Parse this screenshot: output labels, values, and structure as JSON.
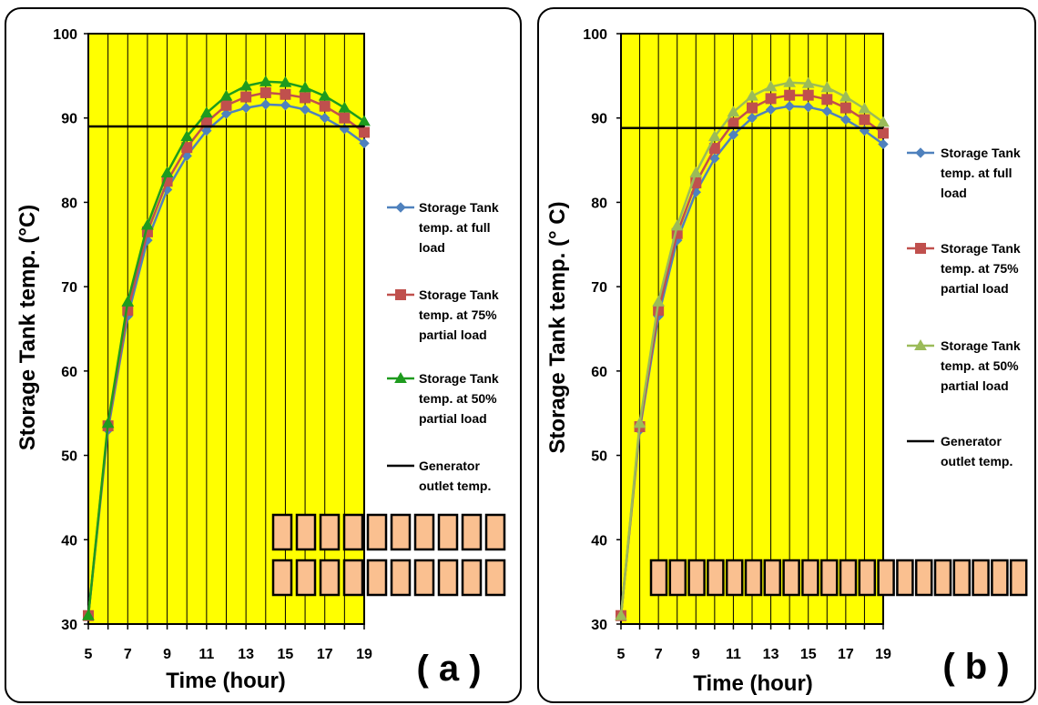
{
  "chart_data": [
    {
      "type": "line",
      "panel_label": "( a )",
      "xlabel": "Time (hour)",
      "ylabel": "Storage Tank temp. (°C)",
      "xlim": [
        5,
        19
      ],
      "ylim": [
        30,
        100
      ],
      "x_ticks": [
        "5",
        "7",
        "9",
        "11",
        "13",
        "15",
        "17",
        "19"
      ],
      "y_ticks": [
        "30",
        "40",
        "50",
        "60",
        "70",
        "80",
        "90",
        "100"
      ],
      "x": [
        5,
        6,
        7,
        8,
        9,
        10,
        11,
        12,
        13,
        14,
        15,
        16,
        17,
        18,
        19
      ],
      "grid": "vertical",
      "legend_position": "right",
      "series": [
        {
          "name": "Storage Tank temp. at full load",
          "color": "#4f81bd",
          "marker": "diamond",
          "values": [
            31,
            53,
            66.5,
            75.5,
            81.5,
            85.5,
            88.5,
            90.5,
            91.2,
            91.6,
            91.5,
            91.0,
            90.0,
            88.7,
            87.0
          ]
        },
        {
          "name": "Storage Tank temp. at 75% partial load",
          "color": "#c0504d",
          "marker": "square",
          "values": [
            31,
            53.5,
            67.2,
            76.5,
            82.5,
            86.5,
            89.5,
            91.5,
            92.5,
            93.0,
            92.8,
            92.4,
            91.4,
            90.0,
            88.3
          ]
        },
        {
          "name": "Storage Tank temp. at 50% partial load",
          "color": "#1e9b1e",
          "marker": "triangle",
          "values": [
            31,
            53.8,
            68.2,
            77.3,
            83.5,
            87.8,
            90.6,
            92.6,
            93.8,
            94.3,
            94.2,
            93.6,
            92.6,
            91.2,
            89.6
          ]
        },
        {
          "name": "Generator outlet temp.",
          "color": "#000000",
          "marker": "none",
          "values": [
            89,
            89,
            89,
            89,
            89,
            89,
            89,
            89,
            89,
            89,
            89,
            89,
            89,
            89,
            89
          ]
        }
      ]
    },
    {
      "type": "line",
      "panel_label": "( b )",
      "xlabel": "Time (hour)",
      "ylabel": "Storage Tank temp. (° C)",
      "xlim": [
        5,
        19
      ],
      "ylim": [
        30,
        100
      ],
      "x_ticks": [
        "5",
        "7",
        "9",
        "11",
        "13",
        "15",
        "17",
        "19"
      ],
      "y_ticks": [
        "30",
        "40",
        "50",
        "60",
        "70",
        "80",
        "90",
        "100"
      ],
      "x": [
        5,
        6,
        7,
        8,
        9,
        10,
        11,
        12,
        13,
        14,
        15,
        16,
        17,
        18,
        19
      ],
      "grid": "vertical",
      "legend_position": "right",
      "series": [
        {
          "name": "Storage Tank temp. at full load",
          "color": "#4f81bd",
          "marker": "diamond",
          "values": [
            31,
            53,
            66.5,
            75.5,
            81.2,
            85.2,
            88.0,
            90.0,
            91.0,
            91.4,
            91.3,
            90.8,
            89.8,
            88.5,
            86.9
          ]
        },
        {
          "name": "Storage Tank temp. at 75% partial load",
          "color": "#c0504d",
          "marker": "square",
          "values": [
            31,
            53.4,
            67.2,
            76.3,
            82.3,
            86.4,
            89.4,
            91.2,
            92.3,
            92.7,
            92.7,
            92.2,
            91.2,
            89.8,
            88.2
          ]
        },
        {
          "name": "Storage Tank temp. at 50% partial load",
          "color": "#9bbb59",
          "marker": "triangle",
          "values": [
            31,
            53.8,
            68.2,
            77.2,
            83.5,
            87.8,
            90.7,
            92.6,
            93.7,
            94.2,
            94.1,
            93.6,
            92.5,
            91.1,
            89.5
          ]
        },
        {
          "name": "Generator outlet temp.",
          "color": "#000000",
          "marker": "none",
          "values": [
            88.8,
            88.8,
            88.8,
            88.8,
            88.8,
            88.8,
            88.8,
            88.8,
            88.8,
            88.8,
            88.8,
            88.8,
            88.8,
            88.8,
            88.8
          ]
        }
      ]
    }
  ],
  "style": {
    "plot_background": "#ffff00",
    "block_fill": "#fac090",
    "block_stroke": "#000000"
  },
  "legend_lines": {
    "full": [
      "Storage Tank",
      "temp. at full",
      "load"
    ],
    "p75": [
      "Storage Tank",
      "temp. at 75%",
      "partial load"
    ],
    "p50": [
      "Storage Tank",
      "temp. at 50%",
      "partial load"
    ],
    "gen": [
      "Generator",
      "outlet temp."
    ]
  }
}
